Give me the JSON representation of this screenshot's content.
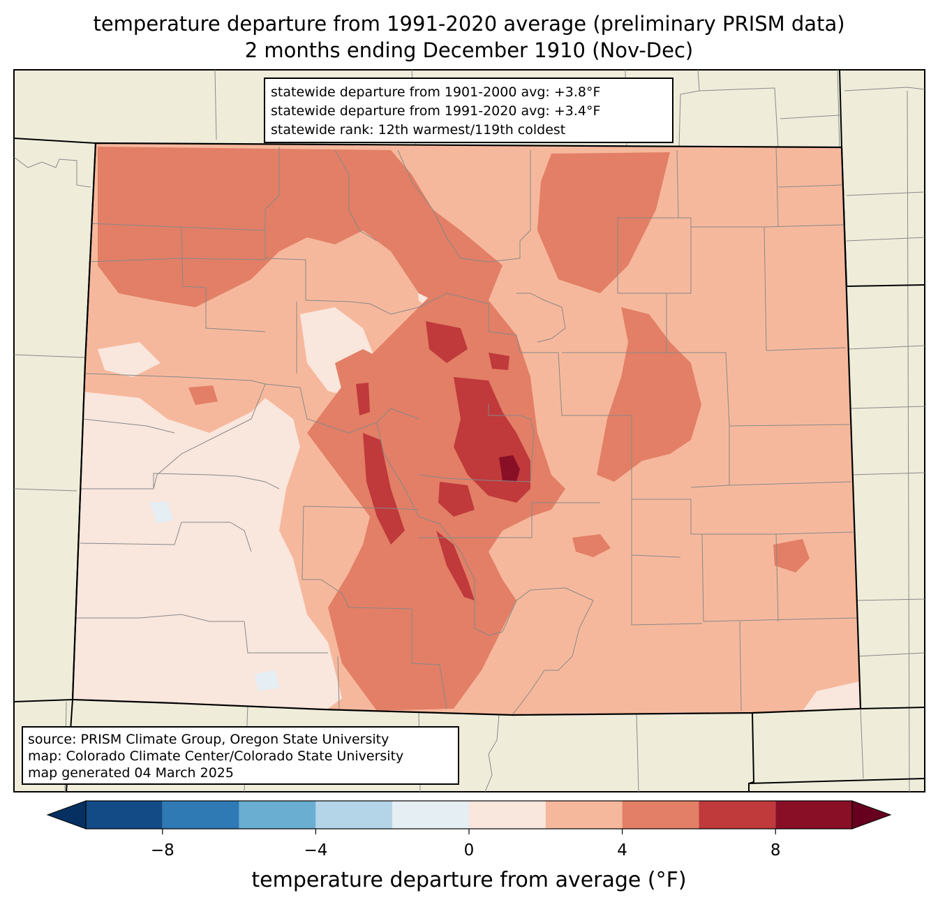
{
  "title": {
    "line1": "temperature departure from 1991-2020 average (preliminary PRISM data)",
    "line2": "2 months ending December 1910 (Nov-Dec)"
  },
  "stats": {
    "line1": "statewide departure from 1901-2000 avg: +3.8°F",
    "line2": "statewide departure from 1991-2020 avg: +3.4°F",
    "line3": "statewide rank: 12th warmest/119th coldest"
  },
  "source": {
    "line1": "source: PRISM Climate Group, Oregon State University",
    "line2": "map: Colorado Climate Center/Colorado State University",
    "line3": "map generated 04 March 2025"
  },
  "colorbar": {
    "label": "temperature departure from average (°F)",
    "ticks": [
      {
        "value": -8,
        "label": "−8"
      },
      {
        "value": -4,
        "label": "−4"
      },
      {
        "value": 0,
        "label": "0"
      },
      {
        "value": 4,
        "label": "4"
      },
      {
        "value": 8,
        "label": "8"
      }
    ],
    "bins": [
      {
        "from": -10,
        "to": -8,
        "color": "#134b87"
      },
      {
        "from": -8,
        "to": -6,
        "color": "#2f79b5"
      },
      {
        "from": -6,
        "to": -4,
        "color": "#6aaed2"
      },
      {
        "from": -4,
        "to": -2,
        "color": "#b3d5e7"
      },
      {
        "from": -2,
        "to": 0,
        "color": "#e5eef3"
      },
      {
        "from": 0,
        "to": 2,
        "color": "#f9e6dd"
      },
      {
        "from": 2,
        "to": 4,
        "color": "#f6b89c"
      },
      {
        "from": 4,
        "to": 6,
        "color": "#e27f66"
      },
      {
        "from": 6,
        "to": 8,
        "color": "#c0393b"
      },
      {
        "from": 8,
        "to": 10,
        "color": "#890f26"
      }
    ],
    "under_color": "#053061",
    "over_color": "#67001f"
  },
  "map": {
    "land_color": "#efedda",
    "county_line_color": "#888888",
    "state_line_color": "#000000"
  }
}
